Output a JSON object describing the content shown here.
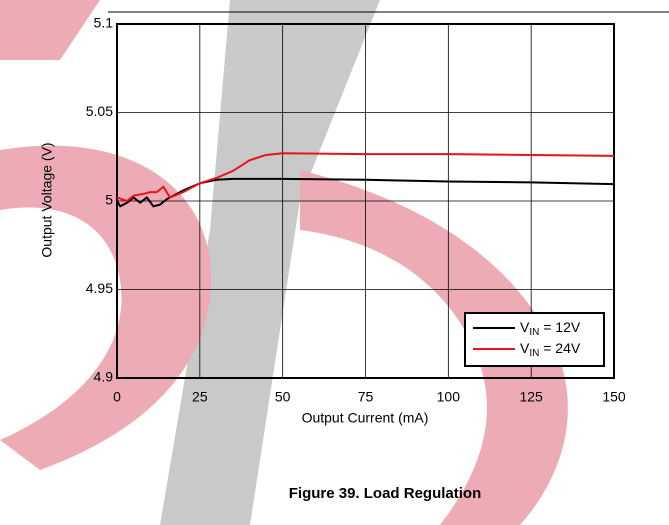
{
  "chart_data": {
    "type": "line",
    "caption": "Figure 39. Load Regulation",
    "xlabel": "Output Current (mA)",
    "ylabel": "Output Voltage (V)",
    "xlim": [
      0,
      150
    ],
    "xticks": [
      0,
      25,
      50,
      75,
      100,
      125,
      150
    ],
    "ylim": [
      4.9,
      5.1
    ],
    "yticks": [
      4.9,
      4.95,
      5,
      5.05,
      5.1
    ],
    "grid": true,
    "legend": "lower right",
    "series": [
      {
        "name": "VIN = 12V",
        "color": "#000000",
        "x": [
          0,
          1,
          3,
          5,
          7,
          9,
          11,
          13,
          15,
          20,
          25,
          30,
          35,
          50,
          75,
          100,
          125,
          150
        ],
        "values": [
          5.0,
          4.997,
          4.999,
          5.002,
          4.999,
          5.002,
          4.997,
          4.998,
          5.001,
          5.006,
          5.01,
          5.012,
          5.0125,
          5.0125,
          5.012,
          5.011,
          5.0105,
          5.0095
        ]
      },
      {
        "name": "VIN = 24V",
        "color": "#e8131b",
        "x": [
          0,
          3,
          5,
          8,
          10,
          12,
          14,
          16,
          20,
          25,
          30,
          35,
          40,
          45,
          50,
          75,
          100,
          125,
          150
        ],
        "values": [
          5.002,
          5.0,
          5.003,
          5.004,
          5.005,
          5.005,
          5.008,
          5.002,
          5.005,
          5.01,
          5.013,
          5.017,
          5.023,
          5.026,
          5.027,
          5.0265,
          5.0265,
          5.026,
          5.0255
        ]
      }
    ]
  }
}
